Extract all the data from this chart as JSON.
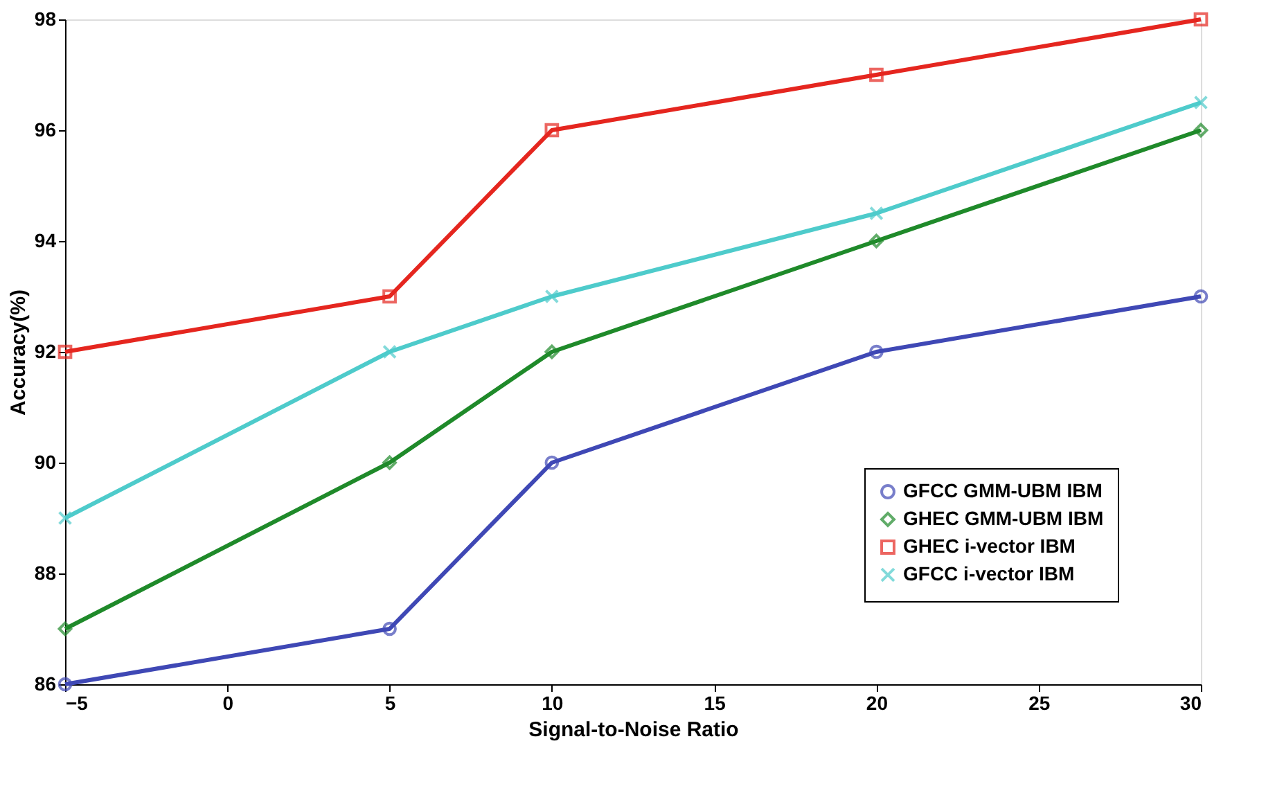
{
  "chart_data": {
    "type": "line",
    "xlabel": "Signal-to-Noise Ratio",
    "ylabel": "Accuracy(%)",
    "x": [
      -5,
      5,
      10,
      20,
      30
    ],
    "xlim": [
      -5,
      30
    ],
    "xticks": [
      -5,
      0,
      5,
      10,
      15,
      20,
      25,
      30
    ],
    "ylim": [
      86,
      98
    ],
    "yticks": [
      86,
      88,
      90,
      92,
      94,
      96,
      98
    ],
    "grid": false,
    "legend": "bottom right",
    "line_style": "solid",
    "series": [
      {
        "name": "GFCC GMM-UBM IBM",
        "color": "#3f48b5",
        "marker": "circle",
        "values": [
          86,
          87,
          90,
          92,
          93
        ]
      },
      {
        "name": "GHEC GMM-UBM IBM",
        "color": "#1f8a2a",
        "marker": "diamond",
        "values": [
          87,
          90,
          92,
          94,
          96
        ]
      },
      {
        "name": "GHEC i-vector IBM",
        "color": "#e5261f",
        "marker": "square",
        "values": [
          92,
          93,
          96,
          97,
          98
        ]
      },
      {
        "name": "GFCC i-vector IBM",
        "color": "#4ecbcb",
        "marker": "cross",
        "values": [
          89,
          92,
          93,
          94.5,
          96.5
        ]
      }
    ]
  }
}
